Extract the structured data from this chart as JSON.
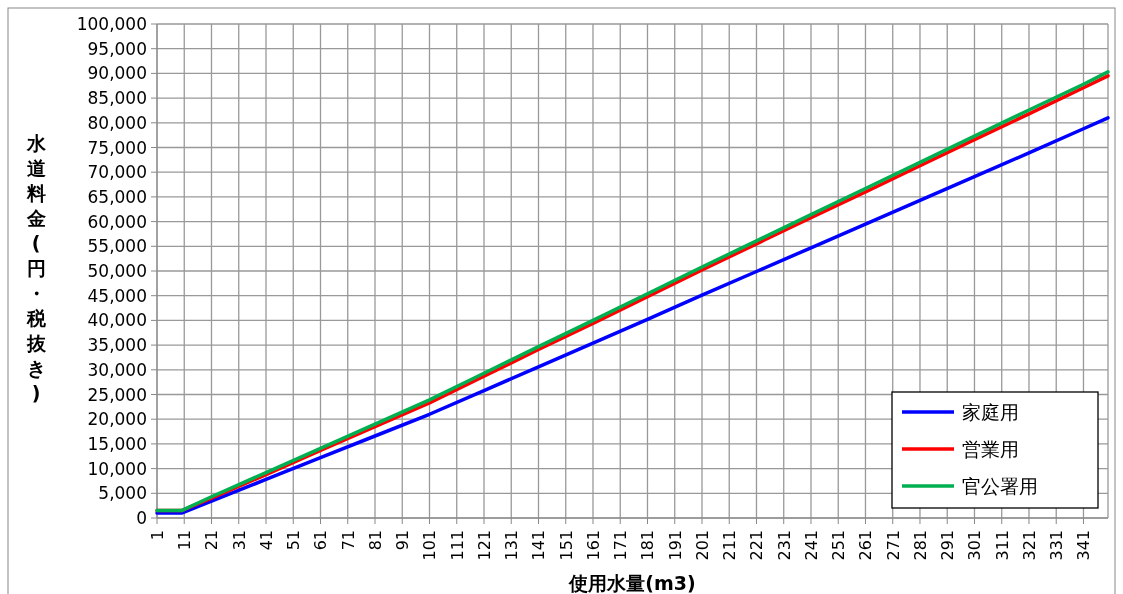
{
  "chart_data": {
    "type": "line",
    "xlabel": "使用水量(m3)",
    "ylabel": "水道料金(円・税抜き)",
    "xlim": [
      1,
      350
    ],
    "ylim": [
      0,
      100000
    ],
    "xticks": [
      1,
      11,
      21,
      31,
      41,
      51,
      61,
      71,
      81,
      91,
      101,
      111,
      121,
      131,
      141,
      151,
      161,
      171,
      181,
      191,
      201,
      211,
      221,
      231,
      241,
      251,
      261,
      271,
      281,
      291,
      301,
      311,
      321,
      331,
      341
    ],
    "yticks": [
      0,
      {
        "value": 5000,
        "label": "5,000"
      },
      {
        "value": 10000,
        "label": "10,000"
      },
      {
        "value": 15000,
        "label": "15,000"
      },
      {
        "value": 20000,
        "label": "20,000"
      },
      {
        "value": 25000,
        "label": "25,000"
      },
      {
        "value": 30000,
        "label": "30,000"
      },
      {
        "value": 35000,
        "label": "35,000"
      },
      {
        "value": 40000,
        "label": "40,000"
      },
      {
        "value": 45000,
        "label": "45,000"
      },
      {
        "value": 50000,
        "label": "50,000"
      },
      {
        "value": 55000,
        "label": "55,000"
      },
      {
        "value": 60000,
        "label": "60,000"
      },
      {
        "value": 65000,
        "label": "65,000"
      },
      {
        "value": 70000,
        "label": "70,000"
      },
      {
        "value": 75000,
        "label": "75,000"
      },
      {
        "value": 80000,
        "label": "80,000"
      },
      {
        "value": 85000,
        "label": "85,000"
      },
      {
        "value": 90000,
        "label": "90,000"
      },
      {
        "value": 95000,
        "label": "95,000"
      },
      {
        "value": 100000,
        "label": "100,000"
      }
    ],
    "grid": true,
    "legend": "bottom right",
    "marker": "none",
    "line_style": "solid",
    "x": [
      1,
      10,
      21,
      41,
      61,
      81,
      101,
      121,
      141,
      161,
      181,
      201,
      221,
      241,
      261,
      281,
      301,
      321,
      341,
      350
    ],
    "series": [
      {
        "name": "家庭用",
        "color": "#0000ff",
        "values": [
          1000,
          1000,
          3400,
          7800,
          12200,
          16600,
          21000,
          25800,
          30600,
          35400,
          40200,
          45100,
          49900,
          54700,
          59500,
          64300,
          69100,
          73900,
          78800,
          81000
        ]
      },
      {
        "name": "営業用",
        "color": "#ff0000",
        "values": [
          1500,
          1500,
          4000,
          8800,
          13700,
          18500,
          23300,
          28700,
          34100,
          39400,
          44800,
          50200,
          55500,
          60800,
          66000,
          71300,
          76600,
          81800,
          87100,
          89500
        ]
      },
      {
        "name": "官公署用",
        "color": "#00b050",
        "values": [
          1500,
          1500,
          4300,
          9200,
          14100,
          19000,
          23900,
          29300,
          34700,
          40000,
          45400,
          50800,
          56100,
          61400,
          66700,
          72000,
          77300,
          82600,
          87800,
          90300
        ]
      }
    ]
  }
}
